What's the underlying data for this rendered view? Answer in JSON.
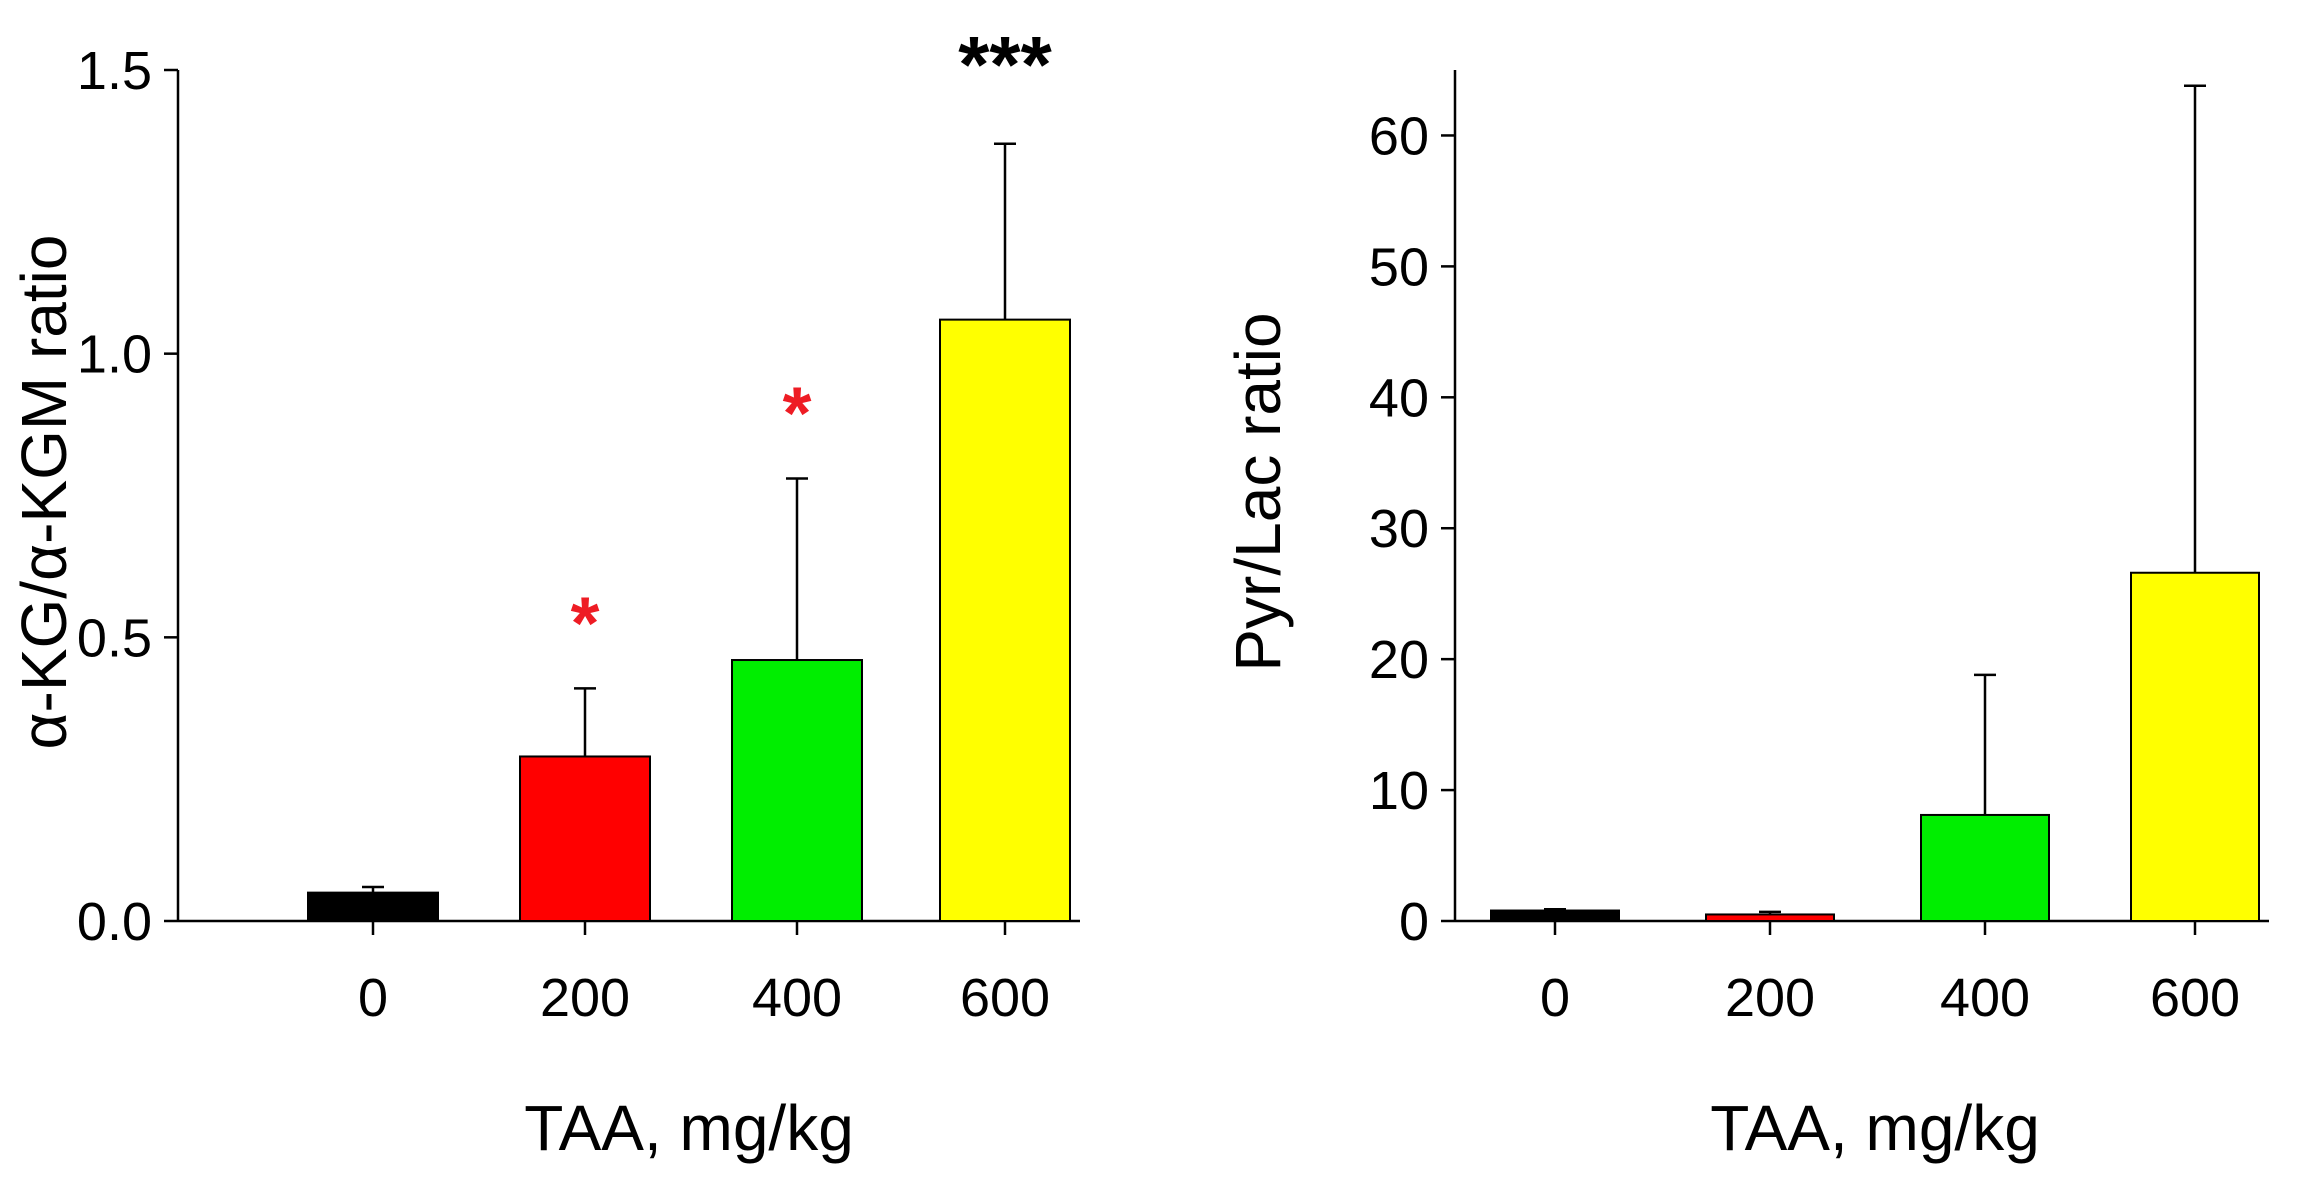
{
  "chart_data": [
    {
      "type": "bar",
      "categories": [
        "0",
        "200",
        "400",
        "600"
      ],
      "values": [
        0.05,
        0.29,
        0.46,
        1.06
      ],
      "errors": [
        0.01,
        0.12,
        0.32,
        0.31
      ],
      "colors": [
        "#000000",
        "#ff0000",
        "#00ee00",
        "#ffff00"
      ],
      "significance": [
        {
          "category": "200",
          "label": "*",
          "color": "#ee1c24"
        },
        {
          "category": "400",
          "label": "*",
          "color": "#ee1c24"
        },
        {
          "category": "600",
          "label": "***",
          "color": "#000000"
        }
      ],
      "xlabel": "TAA, mg/kg",
      "ylabel": "α-KG/α-KGM ratio",
      "ylim": [
        0,
        1.5
      ],
      "yticks": [
        "0.0",
        "0.5",
        "1.0",
        "1.5"
      ],
      "ytick_values": [
        0,
        0.5,
        1.0,
        1.5
      ]
    },
    {
      "type": "bar",
      "categories": [
        "0",
        "200",
        "400",
        "600"
      ],
      "values": [
        0.8,
        0.5,
        8.1,
        26.6
      ],
      "errors": [
        0.1,
        0.2,
        10.7,
        37.2
      ],
      "colors": [
        "#000000",
        "#ff0000",
        "#00ee00",
        "#ffff00"
      ],
      "significance": [],
      "xlabel": "TAA, mg/kg",
      "ylabel": "Pyr/Lac ratio",
      "ylim": [
        0,
        65
      ],
      "yticks": [
        "0",
        "10",
        "20",
        "30",
        "40",
        "50",
        "60"
      ],
      "ytick_values": [
        0,
        10,
        20,
        30,
        40,
        50,
        60
      ]
    }
  ]
}
